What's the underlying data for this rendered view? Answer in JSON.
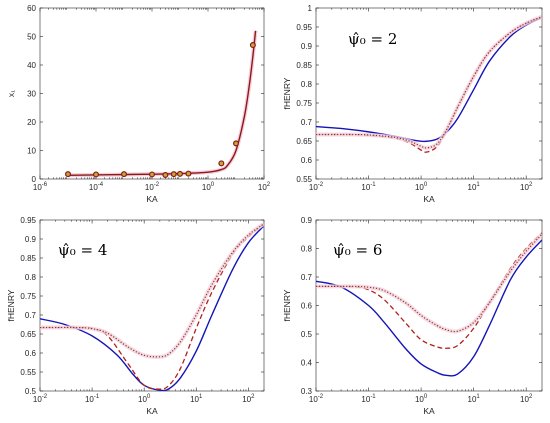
{
  "colors": {
    "solid": "#1414b8",
    "dashed": "#b32019",
    "dotted": "#8a3a1a",
    "marker": "#8b1a14",
    "axis": "#262626",
    "halo": "#f4cfe0"
  },
  "chart_data": [
    {
      "type": "line",
      "id": "panel-a",
      "panel_label": "",
      "xlabel": "KA",
      "ylabel": "x₁",
      "xscale": "log",
      "xlim": [
        1e-06,
        100
      ],
      "ylim": [
        0,
        60
      ],
      "xticks": [
        1e-06,
        0.0001,
        0.01,
        1,
        100
      ],
      "xtick_labels": [
        [
          "10",
          "-6"
        ],
        [
          "10",
          "-4"
        ],
        [
          "10",
          "-2"
        ],
        [
          "10",
          "0"
        ],
        [
          "10",
          "2"
        ]
      ],
      "yticks": [
        0,
        10,
        20,
        30,
        40,
        50,
        60
      ],
      "ytick_labels": [
        "0",
        "10",
        "20",
        "30",
        "40",
        "50",
        "60"
      ],
      "series": [
        {
          "style": "solid",
          "x": [
            1e-05,
            0.01,
            0.1,
            1,
            3,
            5,
            10,
            20,
            30,
            40,
            50
          ],
          "y": [
            1.3,
            1.7,
            1.9,
            2.4,
            3.3,
            4.8,
            10,
            22,
            33,
            43,
            52
          ]
        },
        {
          "style": "markers",
          "x": [
            1e-05,
            0.0001,
            0.001,
            0.01,
            0.03,
            0.06,
            0.1,
            0.2,
            3,
            10,
            40
          ],
          "y": [
            1.7,
            1.6,
            1.7,
            1.6,
            1.4,
            1.7,
            1.8,
            1.9,
            5.5,
            12.5,
            47
          ]
        }
      ]
    },
    {
      "type": "line",
      "id": "panel-b",
      "panel_label": "ψ̂₀ = 2",
      "xlabel": "KA",
      "ylabel": "fHENRY",
      "xscale": "log",
      "xlim": [
        0.01,
        200
      ],
      "ylim": [
        0.55,
        1.0
      ],
      "xticks": [
        0.01,
        0.1,
        1,
        10,
        100
      ],
      "xtick_labels": [
        [
          "10",
          "-2"
        ],
        [
          "10",
          "-1"
        ],
        [
          "10",
          "0"
        ],
        [
          "10",
          "1"
        ],
        [
          "10",
          "2"
        ]
      ],
      "yticks": [
        0.55,
        0.6,
        0.65,
        0.7,
        0.75,
        0.8,
        0.85,
        0.9,
        0.95,
        1.0
      ],
      "ytick_labels": [
        "0.55",
        "0.6",
        "0.65",
        "0.7",
        "0.75",
        "0.8",
        "0.85",
        "0.9",
        "0.95",
        "1"
      ],
      "series": [
        {
          "style": "solid",
          "x": [
            0.01,
            0.03,
            0.1,
            0.3,
            0.8,
            1.2,
            2,
            3,
            5,
            10,
            20,
            50,
            100,
            200
          ],
          "y": [
            0.688,
            0.683,
            0.674,
            0.663,
            0.651,
            0.649,
            0.655,
            0.672,
            0.71,
            0.785,
            0.86,
            0.925,
            0.955,
            0.975
          ]
        },
        {
          "style": "dashed",
          "x": [
            0.01,
            0.05,
            0.1,
            0.3,
            0.6,
            1.0,
            1.3,
            2,
            3,
            5,
            10,
            20,
            50,
            100,
            200
          ],
          "y": [
            0.667,
            0.667,
            0.665,
            0.658,
            0.645,
            0.626,
            0.621,
            0.635,
            0.675,
            0.74,
            0.82,
            0.885,
            0.935,
            0.96,
            0.977
          ]
        },
        {
          "style": "dotted",
          "x": [
            0.01,
            0.05,
            0.1,
            0.3,
            0.6,
            1.0,
            1.3,
            2,
            3,
            5,
            10,
            20,
            50,
            100,
            200
          ],
          "y": [
            0.667,
            0.667,
            0.666,
            0.66,
            0.65,
            0.636,
            0.632,
            0.642,
            0.678,
            0.74,
            0.82,
            0.885,
            0.935,
            0.96,
            0.977
          ]
        }
      ]
    },
    {
      "type": "line",
      "id": "panel-c",
      "panel_label": "ψ̂₀ = 4",
      "xlabel": "KA",
      "ylabel": "fHENRY",
      "xscale": "log",
      "xlim": [
        0.01,
        200
      ],
      "ylim": [
        0.5,
        0.95
      ],
      "xticks": [
        0.01,
        0.1,
        1,
        10,
        100
      ],
      "xtick_labels": [
        [
          "10",
          "-2"
        ],
        [
          "10",
          "-1"
        ],
        [
          "10",
          "0"
        ],
        [
          "10",
          "1"
        ],
        [
          "10",
          "2"
        ]
      ],
      "yticks": [
        0.5,
        0.55,
        0.6,
        0.65,
        0.7,
        0.75,
        0.8,
        0.85,
        0.9,
        0.95
      ],
      "ytick_labels": [
        "0.5",
        "0.55",
        "0.6",
        "0.65",
        "0.7",
        "0.75",
        "0.8",
        "0.85",
        "0.9",
        "0.95"
      ],
      "series": [
        {
          "style": "solid",
          "x": [
            0.01,
            0.03,
            0.1,
            0.3,
            0.6,
            1,
            2,
            3,
            5,
            10,
            20,
            50,
            100,
            200
          ],
          "y": [
            0.69,
            0.675,
            0.645,
            0.595,
            0.545,
            0.515,
            0.502,
            0.506,
            0.535,
            0.605,
            0.7,
            0.82,
            0.89,
            0.935
          ]
        },
        {
          "style": "dashed",
          "x": [
            0.01,
            0.05,
            0.1,
            0.2,
            0.5,
            1,
            2,
            3,
            5,
            10,
            20,
            50,
            100,
            200
          ],
          "y": [
            0.667,
            0.667,
            0.665,
            0.645,
            0.57,
            0.515,
            0.505,
            0.515,
            0.56,
            0.665,
            0.76,
            0.86,
            0.905,
            0.94
          ]
        },
        {
          "style": "dotted",
          "x": [
            0.01,
            0.05,
            0.1,
            0.2,
            0.5,
            1,
            2,
            3,
            5,
            10,
            20,
            50,
            100,
            200
          ],
          "y": [
            0.667,
            0.667,
            0.664,
            0.652,
            0.615,
            0.594,
            0.59,
            0.598,
            0.63,
            0.7,
            0.78,
            0.865,
            0.91,
            0.94
          ]
        }
      ]
    },
    {
      "type": "line",
      "id": "panel-d",
      "panel_label": "ψ̂₀ = 6",
      "xlabel": "KA",
      "ylabel": "fHENRY",
      "xscale": "log",
      "xlim": [
        0.01,
        200
      ],
      "ylim": [
        0.3,
        0.9
      ],
      "xticks": [
        0.01,
        0.1,
        1,
        10,
        100
      ],
      "xtick_labels": [
        [
          "10",
          "-2"
        ],
        [
          "10",
          "-1"
        ],
        [
          "10",
          "0"
        ],
        [
          "10",
          "1"
        ],
        [
          "10",
          "2"
        ]
      ],
      "yticks": [
        0.3,
        0.4,
        0.5,
        0.6,
        0.7,
        0.8,
        0.9
      ],
      "ytick_labels": [
        "0.3",
        "0.4",
        "0.5",
        "0.6",
        "0.7",
        "0.8",
        "0.9"
      ],
      "series": [
        {
          "style": "solid",
          "x": [
            0.01,
            0.03,
            0.1,
            0.2,
            0.5,
            1,
            2,
            3,
            5,
            10,
            20,
            50,
            100,
            200
          ],
          "y": [
            0.685,
            0.665,
            0.6,
            0.54,
            0.45,
            0.395,
            0.365,
            0.355,
            0.36,
            0.42,
            0.53,
            0.69,
            0.77,
            0.83
          ]
        },
        {
          "style": "dashed",
          "x": [
            0.01,
            0.05,
            0.1,
            0.2,
            0.5,
            1,
            2,
            3,
            5,
            10,
            20,
            50,
            100,
            200
          ],
          "y": [
            0.667,
            0.666,
            0.655,
            0.62,
            0.54,
            0.48,
            0.455,
            0.45,
            0.46,
            0.52,
            0.61,
            0.73,
            0.8,
            0.855
          ]
        },
        {
          "style": "dotted",
          "x": [
            0.01,
            0.05,
            0.1,
            0.2,
            0.5,
            1,
            2,
            3,
            5,
            10,
            20,
            50,
            100,
            200
          ],
          "y": [
            0.667,
            0.667,
            0.664,
            0.652,
            0.61,
            0.565,
            0.53,
            0.515,
            0.51,
            0.54,
            0.61,
            0.72,
            0.79,
            0.85
          ]
        }
      ]
    }
  ]
}
